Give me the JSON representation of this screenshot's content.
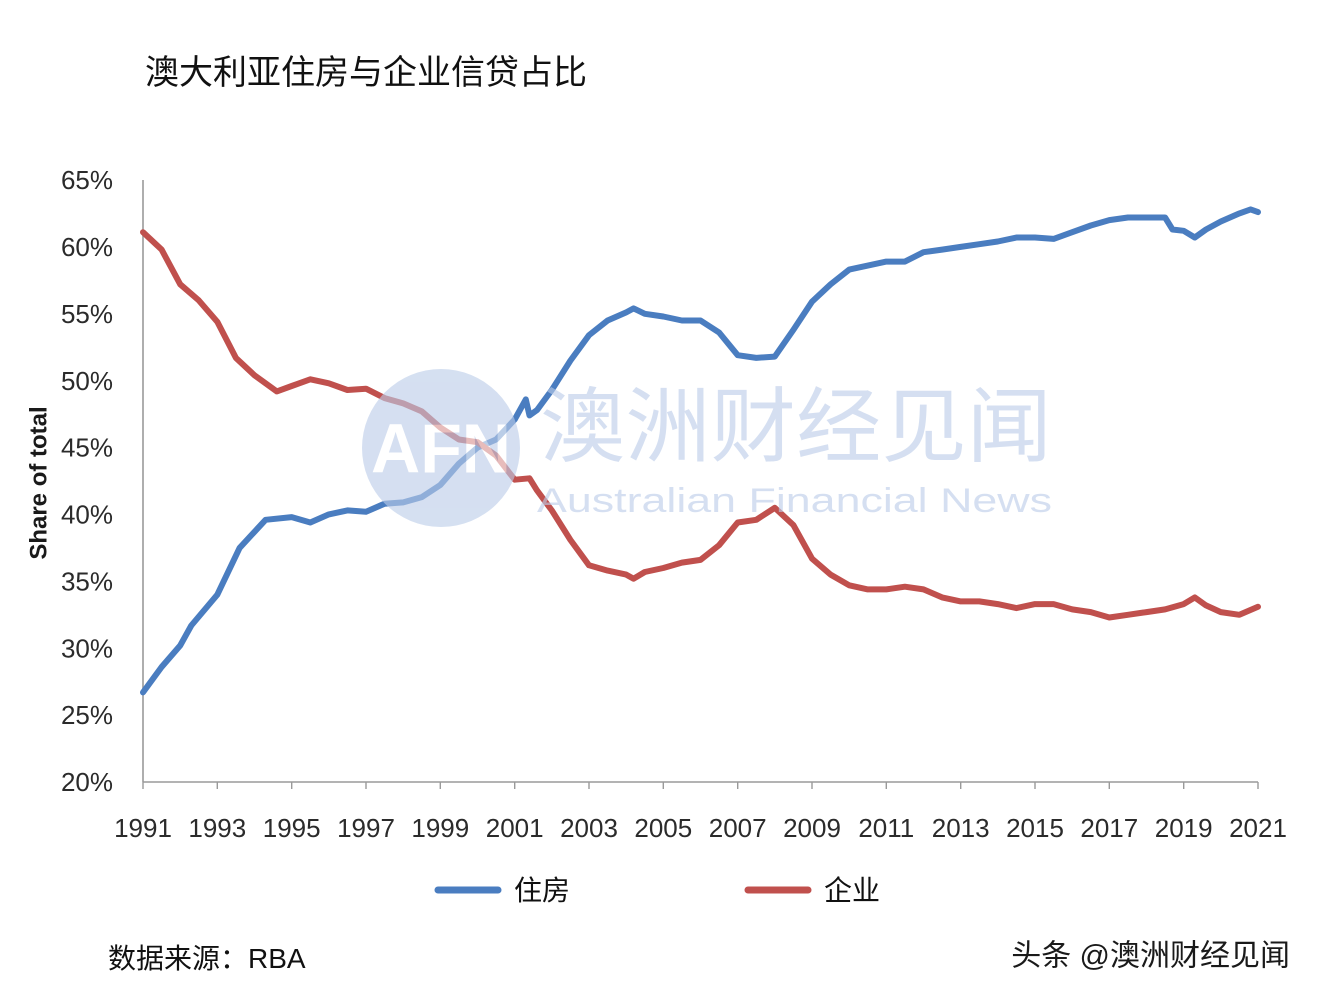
{
  "chart_data": {
    "type": "line",
    "title": "澳大利亚住房与企业信贷占比",
    "ylabel": "Share of total",
    "xlim": [
      1991,
      2021
    ],
    "ylim": [
      20,
      65
    ],
    "grid": false,
    "legend": "bottom-center",
    "x_ticks": [
      "1991",
      "1993",
      "1995",
      "1997",
      "1999",
      "2001",
      "2003",
      "2005",
      "2007",
      "2009",
      "2011",
      "2013",
      "2015",
      "2017",
      "2019",
      "2021"
    ],
    "y_ticks": [
      "20%",
      "25%",
      "30%",
      "35%",
      "40%",
      "45%",
      "50%",
      "55%",
      "60%",
      "65%"
    ],
    "series": [
      {
        "name": "住房",
        "color": "#4a7dc0",
        "points": [
          [
            1991.0,
            26.7
          ],
          [
            1991.5,
            28.6
          ],
          [
            1992.0,
            30.2
          ],
          [
            1992.3,
            31.7
          ],
          [
            1993.0,
            34.0
          ],
          [
            1993.6,
            37.5
          ],
          [
            1994.0,
            38.7
          ],
          [
            1994.3,
            39.6
          ],
          [
            1995.0,
            39.8
          ],
          [
            1995.5,
            39.4
          ],
          [
            1996.0,
            40.0
          ],
          [
            1996.5,
            40.3
          ],
          [
            1997.0,
            40.2
          ],
          [
            1997.5,
            40.8
          ],
          [
            1998.0,
            40.9
          ],
          [
            1998.5,
            41.3
          ],
          [
            1999.0,
            42.2
          ],
          [
            1999.5,
            43.8
          ],
          [
            2000.0,
            45.0
          ],
          [
            2000.5,
            45.6
          ],
          [
            2001.0,
            47.1
          ],
          [
            2001.3,
            48.6
          ],
          [
            2001.4,
            47.4
          ],
          [
            2001.6,
            47.8
          ],
          [
            2002.0,
            49.3
          ],
          [
            2002.5,
            51.5
          ],
          [
            2003.0,
            53.4
          ],
          [
            2003.5,
            54.5
          ],
          [
            2004.0,
            55.1
          ],
          [
            2004.2,
            55.4
          ],
          [
            2004.5,
            55.0
          ],
          [
            2005.0,
            54.8
          ],
          [
            2005.5,
            54.5
          ],
          [
            2006.0,
            54.5
          ],
          [
            2006.5,
            53.6
          ],
          [
            2007.0,
            51.9
          ],
          [
            2007.5,
            51.7
          ],
          [
            2008.0,
            51.8
          ],
          [
            2008.5,
            53.8
          ],
          [
            2009.0,
            55.9
          ],
          [
            2009.5,
            57.2
          ],
          [
            2010.0,
            58.3
          ],
          [
            2010.5,
            58.6
          ],
          [
            2011.0,
            58.9
          ],
          [
            2011.5,
            58.9
          ],
          [
            2012.0,
            59.6
          ],
          [
            2012.5,
            59.8
          ],
          [
            2013.0,
            60.0
          ],
          [
            2013.5,
            60.2
          ],
          [
            2014.0,
            60.4
          ],
          [
            2014.5,
            60.7
          ],
          [
            2015.0,
            60.7
          ],
          [
            2015.5,
            60.6
          ],
          [
            2016.0,
            61.1
          ],
          [
            2016.5,
            61.6
          ],
          [
            2017.0,
            62.0
          ],
          [
            2017.5,
            62.2
          ],
          [
            2018.0,
            62.2
          ],
          [
            2018.5,
            62.2
          ],
          [
            2018.7,
            61.3
          ],
          [
            2019.0,
            61.2
          ],
          [
            2019.3,
            60.7
          ],
          [
            2019.6,
            61.3
          ],
          [
            2020.0,
            61.9
          ],
          [
            2020.5,
            62.5
          ],
          [
            2020.8,
            62.8
          ],
          [
            2021.0,
            62.6
          ]
        ]
      },
      {
        "name": "企业",
        "color": "#c0504d",
        "points": [
          [
            1991.0,
            61.1
          ],
          [
            1991.5,
            59.8
          ],
          [
            1992.0,
            57.2
          ],
          [
            1992.5,
            56.0
          ],
          [
            1993.0,
            54.4
          ],
          [
            1993.5,
            51.7
          ],
          [
            1994.0,
            50.4
          ],
          [
            1994.6,
            49.2
          ],
          [
            1995.0,
            49.6
          ],
          [
            1995.5,
            50.1
          ],
          [
            1996.0,
            49.8
          ],
          [
            1996.5,
            49.3
          ],
          [
            1997.0,
            49.4
          ],
          [
            1997.5,
            48.7
          ],
          [
            1998.0,
            48.3
          ],
          [
            1998.5,
            47.7
          ],
          [
            1999.0,
            46.5
          ],
          [
            1999.5,
            45.6
          ],
          [
            2000.0,
            45.4
          ],
          [
            2000.5,
            44.4
          ],
          [
            2001.0,
            42.6
          ],
          [
            2001.4,
            42.7
          ],
          [
            2001.6,
            41.8
          ],
          [
            2002.0,
            40.3
          ],
          [
            2002.5,
            38.1
          ],
          [
            2003.0,
            36.2
          ],
          [
            2003.5,
            35.8
          ],
          [
            2004.0,
            35.5
          ],
          [
            2004.2,
            35.2
          ],
          [
            2004.5,
            35.7
          ],
          [
            2005.0,
            36.0
          ],
          [
            2005.5,
            36.4
          ],
          [
            2006.0,
            36.6
          ],
          [
            2006.5,
            37.7
          ],
          [
            2007.0,
            39.4
          ],
          [
            2007.5,
            39.6
          ],
          [
            2008.0,
            40.5
          ],
          [
            2008.5,
            39.2
          ],
          [
            2009.0,
            36.7
          ],
          [
            2009.5,
            35.5
          ],
          [
            2010.0,
            34.7
          ],
          [
            2010.5,
            34.4
          ],
          [
            2011.0,
            34.4
          ],
          [
            2011.5,
            34.6
          ],
          [
            2012.0,
            34.4
          ],
          [
            2012.5,
            33.8
          ],
          [
            2013.0,
            33.5
          ],
          [
            2013.5,
            33.5
          ],
          [
            2014.0,
            33.3
          ],
          [
            2014.5,
            33.0
          ],
          [
            2015.0,
            33.3
          ],
          [
            2015.5,
            33.3
          ],
          [
            2016.0,
            32.9
          ],
          [
            2016.5,
            32.7
          ],
          [
            2017.0,
            32.3
          ],
          [
            2017.5,
            32.5
          ],
          [
            2018.0,
            32.7
          ],
          [
            2018.5,
            32.9
          ],
          [
            2019.0,
            33.3
          ],
          [
            2019.3,
            33.8
          ],
          [
            2019.6,
            33.2
          ],
          [
            2020.0,
            32.7
          ],
          [
            2020.5,
            32.5
          ],
          [
            2021.0,
            33.1
          ]
        ]
      }
    ]
  },
  "source": "数据来源：RBA",
  "credit": "头条 @澳洲财经见闻",
  "watermark": {
    "logo_text": "AFN",
    "name_zh": "澳洲财经见闻",
    "name_en": "Australian Financial News",
    "color": "#bccde9"
  }
}
